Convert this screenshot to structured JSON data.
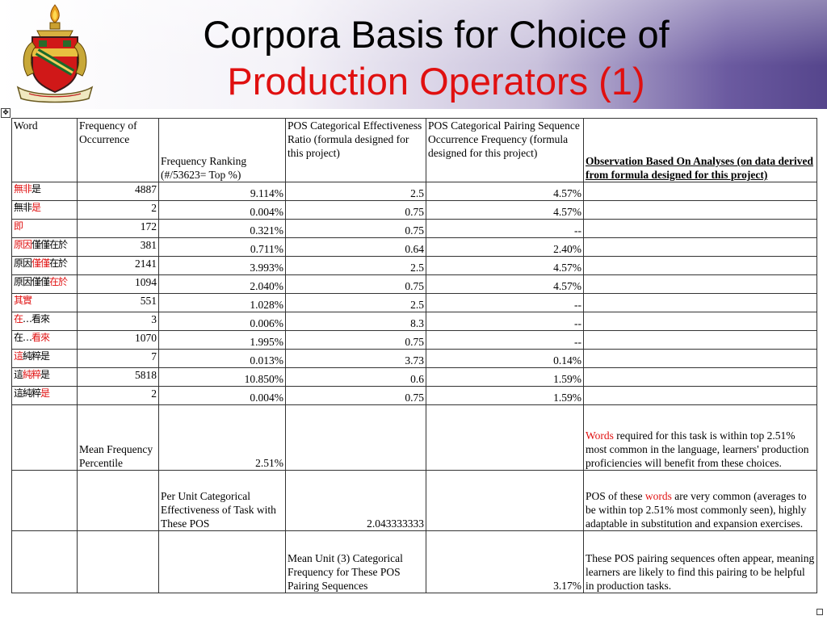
{
  "title": {
    "line1": "Corpora Basis for Choice of",
    "line2": "Production Operators (1)"
  },
  "headers": {
    "word": "Word",
    "frequency": "Frequency of Occurrence",
    "ranking": "Frequency Ranking (#/53623= Top %)",
    "ratio": "POS Categorical Effectiveness Ratio (formula designed for this project)",
    "pairing": "POS Categorical Pairing Sequence Occurrence Frequency  (formula designed for this project)",
    "observation": "Observation Based On Analyses (on data derived from formula designed for this project)"
  },
  "rows": [
    {
      "word_black_pre": "",
      "word_red": "無非",
      "word_black_post": "是",
      "frequency": "4887",
      "ranking": "9.114%",
      "ratio": "2.5",
      "pairing": "4.57%"
    },
    {
      "word_black_pre": "無非",
      "word_red": "是",
      "word_black_post": "",
      "frequency": "2",
      "ranking": "0.004%",
      "ratio": "0.75",
      "pairing": "4.57%"
    },
    {
      "word_black_pre": "",
      "word_red": "即",
      "word_black_post": "",
      "frequency": "172",
      "ranking": "0.321%",
      "ratio": "0.75",
      "pairing": "--"
    },
    {
      "word_black_pre": "",
      "word_red": "原因",
      "word_black_post": "僅僅在於",
      "frequency": "381",
      "ranking": "0.711%",
      "ratio": "0.64",
      "pairing": "2.40%"
    },
    {
      "word_black_pre": "原因",
      "word_red": "僅僅",
      "word_black_post": "在於",
      "frequency": "2141",
      "ranking": "3.993%",
      "ratio": "2.5",
      "pairing": "4.57%"
    },
    {
      "word_black_pre": "原因僅僅",
      "word_red": "在於",
      "word_black_post": "",
      "frequency": "1094",
      "ranking": "2.040%",
      "ratio": "0.75",
      "pairing": "4.57%"
    },
    {
      "word_black_pre": "",
      "word_red": "其實",
      "word_black_post": "",
      "frequency": "551",
      "ranking": "1.028%",
      "ratio": "2.5",
      "pairing": "--"
    },
    {
      "word_black_pre": "",
      "word_red": "在",
      "word_black_post": "…看來",
      "frequency": "3",
      "ranking": "0.006%",
      "ratio": "8.3",
      "pairing": "--"
    },
    {
      "word_black_pre": "在…",
      "word_red": "看來",
      "word_black_post": "",
      "frequency": "1070",
      "ranking": "1.995%",
      "ratio": "0.75",
      "pairing": "--"
    },
    {
      "word_black_pre": "",
      "word_red": "這",
      "word_black_post": "純粹是",
      "frequency": "7",
      "ranking": "0.013%",
      "ratio": "3.73",
      "pairing": "0.14%"
    },
    {
      "word_black_pre": "這",
      "word_red": "純粹",
      "word_black_post": "是",
      "frequency": "5818",
      "ranking": "10.850%",
      "ratio": "0.6",
      "pairing": "1.59%"
    },
    {
      "word_black_pre": "這純粹",
      "word_red": "是",
      "word_black_post": "",
      "frequency": "2",
      "ranking": "0.004%",
      "ratio": "0.75",
      "pairing": "1.59%"
    }
  ],
  "summary": {
    "mean_label": "Mean Frequency Percentile",
    "mean_value": "2.51%",
    "mean_obs_red": "Words",
    "mean_obs_rest": " required for this task is within top 2.51% most common in the language, learners' production proficiencies will benefit from these choices.",
    "unit_label": "Per Unit Categorical Effectiveness of Task with These POS",
    "unit_value": "2.043333333",
    "unit_obs_pre": "POS of these ",
    "unit_obs_red": "words",
    "unit_obs_post": " are very common (averages to be within top 2.51% most commonly seen), highly adaptable in substitution and expansion exercises.",
    "pair_label": "Mean Unit (3) Categorical Frequency for These POS Pairing Sequences",
    "pair_value": "3.17%",
    "pair_obs": "These POS pairing sequences often appear, meaning learners are likely to find this pairing to be helpful in production tasks."
  },
  "colors": {
    "accent_red": "#e01010",
    "banner_purple": "#55458c"
  }
}
